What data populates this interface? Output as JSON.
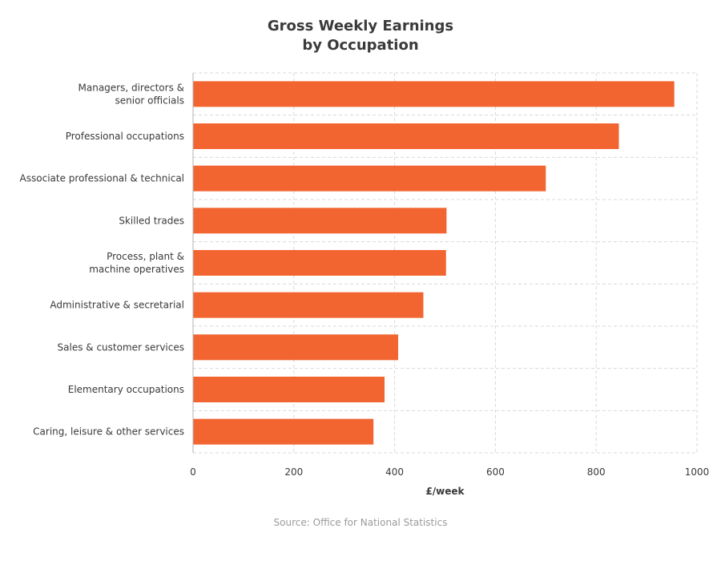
{
  "title": {
    "line1": "Gross Weekly Earnings",
    "line2": "by Occupation"
  },
  "source": "Source: Office for National Statistics",
  "colors": {
    "bar": "#f26430",
    "grid": "#d9d9d9",
    "axis": "#b0b0b0",
    "text": "#3a3a3a"
  },
  "chart_data": {
    "type": "bar",
    "orientation": "horizontal",
    "title": "Gross Weekly Earnings by Occupation",
    "xlabel": "£/week",
    "ylabel": "",
    "xlim": [
      0,
      1000
    ],
    "xticks": [
      0,
      200,
      400,
      600,
      800,
      1000
    ],
    "grid": true,
    "categories": [
      [
        "Managers, directors &",
        "senior officials"
      ],
      [
        "Professional occupations"
      ],
      [
        "Associate professional & technical"
      ],
      [
        "Skilled trades"
      ],
      [
        "Process, plant &",
        "machine operatives"
      ],
      [
        "Administrative & secretarial"
      ],
      [
        "Sales & customer services"
      ],
      [
        "Elementary occupations"
      ],
      [
        "Caring, leisure & other services"
      ]
    ],
    "values": [
      955,
      845,
      700,
      503,
      502,
      457,
      407,
      380,
      358
    ]
  }
}
